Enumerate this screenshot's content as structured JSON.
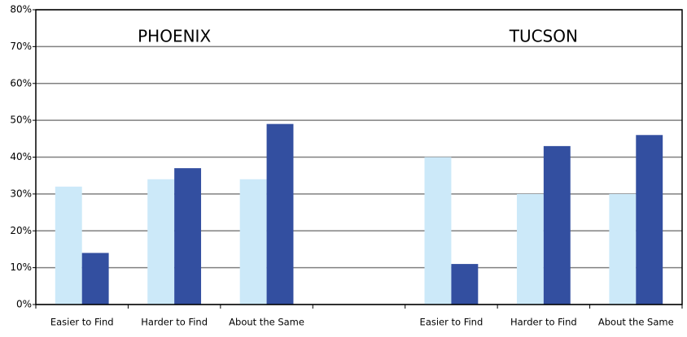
{
  "chart_data": {
    "type": "bar",
    "annotations": [
      "PHOENIX",
      "TUCSON"
    ],
    "categories": [
      "Easier to Find",
      "Harder to Find",
      "About the Same",
      null,
      "Easier to Find",
      "Harder to Find",
      "About the Same"
    ],
    "series": [
      {
        "color": "#cce9f9",
        "values": [
          32,
          34,
          34,
          null,
          40,
          30,
          30
        ]
      },
      {
        "color": "#334fa0",
        "values": [
          14,
          37,
          49,
          null,
          11,
          43,
          46
        ]
      }
    ],
    "ylim": [
      0,
      80
    ],
    "yticks": [
      {
        "value": 0,
        "label": "0%"
      },
      {
        "value": 10,
        "label": "10%"
      },
      {
        "value": 20,
        "label": "20%"
      },
      {
        "value": 30,
        "label": "30%"
      },
      {
        "value": 40,
        "label": "40%"
      },
      {
        "value": 50,
        "label": "50%"
      },
      {
        "value": 60,
        "label": "60%"
      },
      {
        "value": 70,
        "label": "70%"
      },
      {
        "value": 80,
        "label": "80%"
      }
    ],
    "grid": true
  }
}
